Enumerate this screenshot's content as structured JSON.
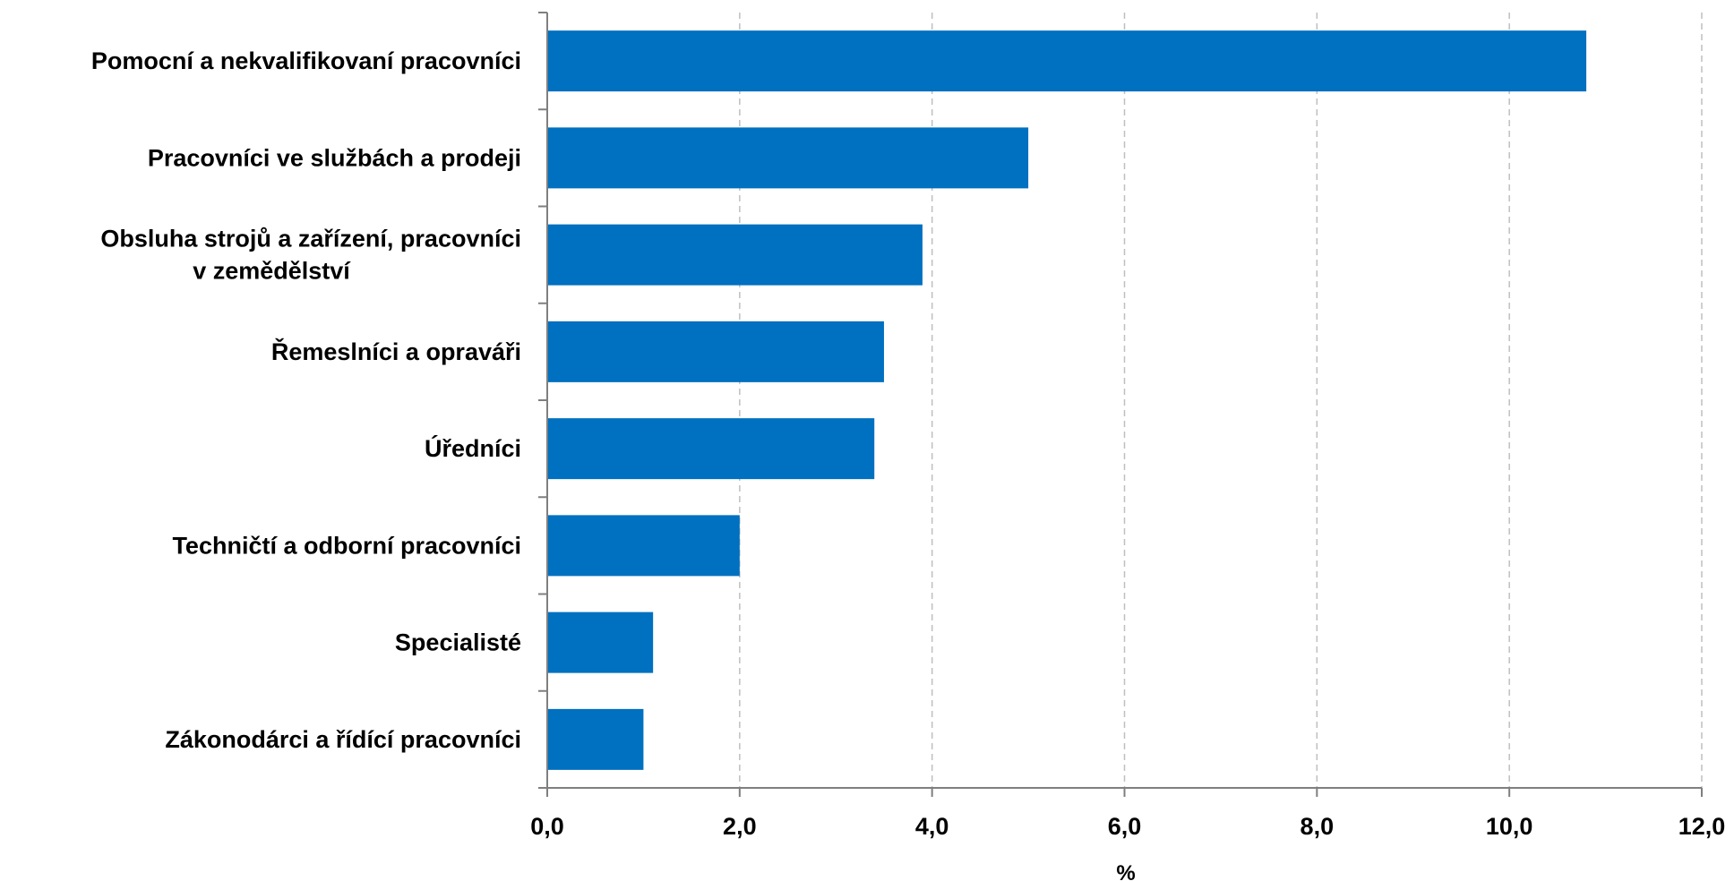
{
  "chart_data": {
    "type": "bar",
    "orientation": "horizontal",
    "categories": [
      "Pomocní a nekvalifikovaní pracovníci",
      "Pracovníci ve službách a prodeji",
      "Obsluha strojů a zařízení, pracovníci v zemědělství",
      "Řemeslníci a opraváři",
      "Úředníci",
      "Techničtí a odborní pracovníci",
      "Specialisté",
      "Zákonodárci a řídící pracovníci"
    ],
    "category_lines": [
      [
        "Pomocní a nekvalifikovaní pracovníci"
      ],
      [
        "Pracovníci ve službách a prodeji"
      ],
      [
        "Obsluha strojů a zařízení, pracovníci",
        "v zemědělství"
      ],
      [
        "Řemeslníci a opraváři"
      ],
      [
        "Úředníci"
      ],
      [
        "Techničtí a odborní pracovníci"
      ],
      [
        "Specialisté"
      ],
      [
        "Zákonodárci a řídící pracovníci"
      ]
    ],
    "values": [
      10.8,
      5.0,
      3.9,
      3.5,
      3.4,
      2.0,
      1.1,
      1.0
    ],
    "x_ticks": [
      "0,0",
      "2,0",
      "4,0",
      "6,0",
      "8,0",
      "10,0",
      "12,0"
    ],
    "xlim": [
      0,
      12
    ],
    "xlabel": "%",
    "grid": "vertical dashed",
    "bar_color": "#0070C0",
    "grid_color": "#BFBFBF",
    "axis_color": "#7F7F7F"
  }
}
